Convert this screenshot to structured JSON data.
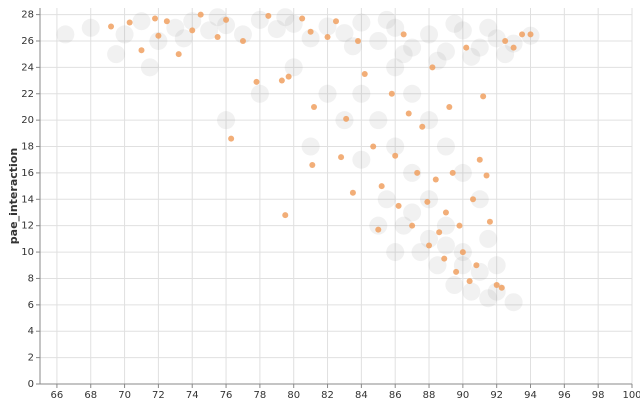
{
  "chart_data": {
    "type": "scatter",
    "y_label": "pae_interaction",
    "xlim": [
      65,
      100
    ],
    "ylim": [
      0,
      28.5
    ],
    "xticks": [
      66,
      68,
      70,
      72,
      74,
      76,
      78,
      80,
      82,
      84,
      86,
      88,
      90,
      92,
      94,
      96,
      98,
      100
    ],
    "yticks": [
      0,
      2,
      4,
      6,
      8,
      10,
      12,
      14,
      16,
      18,
      20,
      22,
      24,
      26,
      28
    ],
    "grid": true,
    "series": [
      {
        "color": "#8c8c8c",
        "x": [
          68,
          70,
          71,
          72,
          73,
          74,
          75,
          76,
          77,
          78,
          79,
          80,
          81,
          82,
          83,
          84,
          85,
          86,
          87,
          88,
          89,
          90,
          91,
          92,
          93,
          94,
          86.5,
          88.5,
          90.5,
          92.5,
          73.5,
          75.5,
          79.5,
          83.5,
          85.5,
          89.5,
          91.5,
          66.5,
          69.5,
          71.5,
          84,
          85,
          86,
          87,
          88,
          89,
          90,
          91,
          92,
          93,
          85.5,
          86.5,
          87.5,
          88.5,
          89.5,
          90.5,
          91.5,
          88,
          89,
          90,
          91,
          87,
          86,
          84,
          83,
          82,
          80,
          78,
          76,
          81,
          89,
          90,
          88,
          87,
          91.5,
          92,
          86,
          85
        ],
        "values": [
          27,
          26.5,
          27.5,
          26,
          27,
          27.5,
          26.8,
          27.2,
          26.5,
          27.6,
          26.9,
          27.3,
          26.2,
          27.1,
          26.6,
          27.4,
          26,
          27,
          25.5,
          26.5,
          25.2,
          26.8,
          25.5,
          26.2,
          25.8,
          26.4,
          25,
          24.5,
          24.8,
          25,
          26.2,
          27.8,
          27.8,
          25.6,
          27.6,
          27.3,
          27,
          26.5,
          25,
          24,
          22,
          20,
          18,
          16,
          14,
          12,
          10,
          8.5,
          7,
          6.2,
          14,
          12,
          10,
          9,
          7.5,
          7,
          6.5,
          20,
          18,
          16,
          14,
          22,
          24,
          17,
          20,
          22,
          24,
          22,
          20,
          18,
          10.5,
          9,
          11,
          13,
          11,
          9,
          10,
          12
        ]
      },
      {
        "color": "#f0a060",
        "x": [
          69.2,
          70.3,
          71,
          71.8,
          72,
          72.5,
          73.2,
          74,
          74.5,
          75.5,
          76,
          76.3,
          77,
          77.8,
          78.5,
          79.3,
          79.5,
          79.7,
          80.5,
          81,
          81.1,
          81.2,
          82,
          82.5,
          82.8,
          83.1,
          83.5,
          83.8,
          84.2,
          84.7,
          85,
          85.2,
          85.8,
          86,
          86.2,
          86.5,
          86.8,
          87,
          87.3,
          87.6,
          87.9,
          88,
          88.2,
          88.4,
          88.6,
          88.9,
          89,
          89.2,
          89.4,
          89.6,
          89.8,
          90,
          90.2,
          90.4,
          90.6,
          90.8,
          91,
          91.2,
          91.4,
          91.6,
          92,
          92.3,
          92.5,
          93,
          93.5,
          94
        ],
        "values": [
          27.1,
          27.4,
          25.3,
          27.7,
          26.4,
          27.5,
          25,
          26.8,
          28,
          26.3,
          27.6,
          18.6,
          26,
          22.9,
          27.9,
          23,
          12.8,
          23.3,
          27.7,
          26.7,
          16.6,
          21,
          26.3,
          27.5,
          17.2,
          20.1,
          14.5,
          26,
          23.5,
          18,
          11.7,
          15,
          22,
          17.3,
          13.5,
          26.5,
          20.5,
          12,
          16,
          19.5,
          13.8,
          10.5,
          24,
          15.5,
          11.5,
          9.5,
          13,
          21,
          16,
          8.5,
          12,
          10,
          25.5,
          7.8,
          14,
          9,
          17,
          21.8,
          15.8,
          12.3,
          7.5,
          7.3,
          26,
          25.5,
          26.5,
          26.5
        ]
      }
    ]
  }
}
